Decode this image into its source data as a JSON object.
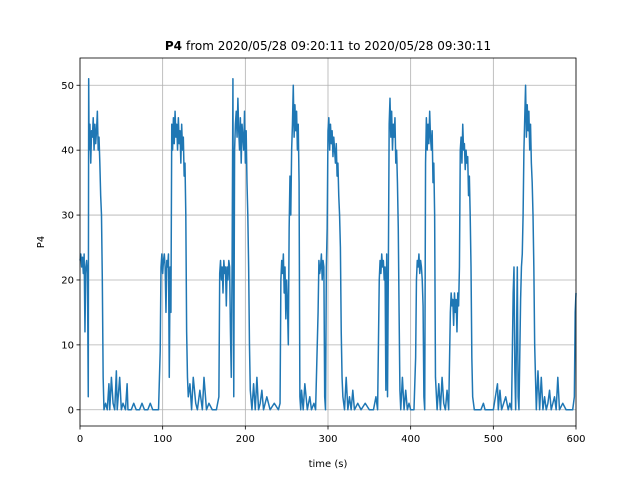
{
  "chart_data": {
    "type": "line",
    "title": [
      "P4",
      "from 2020/05/28 09:20:11 to 2020/05/28 09:30:11"
    ],
    "xlabel": "time (s)",
    "ylabel": "P4",
    "xlim": [
      0,
      600
    ],
    "ylim": [
      -2.5,
      54.2
    ],
    "xticks": [
      0,
      100,
      200,
      300,
      400,
      500,
      600
    ],
    "yticks": [
      0,
      10,
      20,
      30,
      40,
      50
    ],
    "grid": true,
    "x": [
      0,
      1,
      2,
      3,
      4,
      5,
      6,
      7,
      8,
      9,
      10,
      10.5,
      11,
      12,
      13,
      14,
      15,
      16,
      17,
      18,
      19,
      20,
      21,
      22,
      23,
      24,
      25,
      26,
      27,
      28,
      29,
      31,
      33,
      35,
      36,
      38,
      40,
      42,
      44,
      45,
      48,
      50,
      52,
      55,
      57,
      58,
      62,
      65,
      68,
      72,
      75,
      78,
      82,
      85,
      88,
      92,
      95,
      97,
      98,
      99,
      100,
      101,
      102,
      103,
      104,
      105,
      106,
      107,
      108,
      109,
      110,
      111,
      112,
      113,
      114,
      115,
      116,
      117,
      118,
      119,
      120,
      121,
      122,
      123,
      124,
      125,
      126,
      127,
      128,
      129,
      130,
      131,
      133,
      135,
      137,
      140,
      142,
      145,
      148,
      150,
      153,
      156,
      160,
      165,
      168,
      169,
      170,
      171,
      172,
      173,
      174,
      175,
      176,
      177,
      178,
      179,
      180,
      181,
      182,
      183,
      184,
      185,
      186,
      187,
      188,
      189,
      190,
      191,
      192,
      193,
      194,
      195,
      196,
      197,
      198,
      199,
      200,
      201,
      202,
      203,
      204,
      205,
      206,
      208,
      210,
      212,
      214,
      216,
      218,
      220,
      222,
      226,
      230,
      235,
      240,
      242,
      243,
      244,
      245,
      246,
      247,
      248,
      249,
      250,
      251,
      252,
      253,
      254,
      255,
      256,
      257,
      258,
      259,
      260,
      261,
      262,
      263,
      264,
      265,
      266,
      267,
      268,
      270,
      272,
      275,
      278,
      280,
      283,
      285,
      288,
      289,
      290,
      291,
      292,
      293,
      294,
      295,
      296,
      297,
      298,
      299,
      300,
      301,
      302,
      303,
      304,
      305,
      306,
      307,
      308,
      309,
      310,
      311,
      312,
      313,
      314,
      315,
      316,
      317,
      318,
      320,
      322,
      324,
      326,
      328,
      330,
      332,
      336,
      340,
      345,
      350,
      355,
      358,
      360,
      362,
      363,
      364,
      365,
      366,
      367,
      368,
      369,
      370,
      371,
      372,
      373,
      374,
      375,
      376,
      377,
      378,
      379,
      380,
      381,
      382,
      383,
      384,
      385,
      386,
      387,
      388,
      390,
      392,
      394,
      396,
      398,
      400,
      404,
      406,
      407,
      408,
      409,
      410,
      411,
      412,
      413,
      414,
      415,
      416,
      417,
      418,
      419,
      420,
      421,
      422,
      423,
      424,
      425,
      426,
      427,
      428,
      429,
      430,
      432,
      434,
      436,
      438,
      440,
      442,
      444,
      446,
      448,
      449,
      450,
      451,
      452,
      453,
      454,
      455,
      456,
      457,
      458,
      459,
      460,
      461,
      462,
      463,
      464,
      465,
      466,
      467,
      468,
      469,
      470,
      471,
      472,
      473,
      474,
      475,
      477,
      480,
      485,
      488,
      490,
      495,
      500,
      505,
      506,
      508,
      510,
      515,
      518,
      520,
      522,
      524,
      525,
      526,
      527,
      529,
      530,
      531,
      533,
      534,
      535,
      536,
      537,
      538,
      539,
      540,
      541,
      542,
      543,
      544,
      545,
      546,
      547,
      548,
      549,
      550,
      551,
      552,
      554,
      556,
      558,
      560,
      562,
      564,
      566,
      568,
      570,
      574,
      576,
      578,
      580,
      584,
      588,
      592,
      596,
      598,
      599,
      600
    ],
    "series": [
      {
        "color": "#1f77b4",
        "values": [
          23,
          24,
          22,
          23.5,
          21,
          24,
          12,
          22,
          23,
          21,
          2,
          51,
          40,
          44,
          38,
          43,
          42,
          45,
          40,
          44,
          41,
          43,
          46,
          40,
          42,
          38,
          33,
          30,
          20,
          5,
          0,
          1,
          0,
          4,
          0,
          5,
          1,
          0,
          6,
          0,
          5,
          0,
          1,
          0,
          4,
          0,
          0,
          1,
          0,
          0,
          1,
          0,
          0,
          1,
          0,
          0,
          0,
          9,
          22,
          24,
          21,
          23,
          24,
          22,
          15,
          23,
          22,
          24,
          5,
          22,
          15,
          44,
          40,
          45,
          41,
          46,
          42,
          44,
          40,
          45,
          41,
          43,
          38,
          44,
          40,
          42,
          36,
          38,
          30,
          12,
          5,
          2,
          4,
          0,
          5,
          1,
          0,
          3,
          0,
          5,
          0,
          1,
          0,
          0,
          2,
          21,
          23,
          20,
          22,
          18,
          23,
          21,
          22,
          16,
          22,
          20,
          23,
          22,
          12,
          5,
          23,
          51,
          2,
          40,
          44,
          46,
          42,
          48,
          43,
          40,
          45,
          38,
          44,
          42,
          40,
          46,
          38,
          43,
          35,
          30,
          22,
          10,
          3,
          0,
          4,
          0,
          5,
          0,
          1,
          3,
          0,
          2,
          0,
          1,
          0,
          1,
          20,
          23,
          21,
          24,
          18,
          22,
          14,
          20,
          16,
          10,
          28,
          36,
          30,
          40,
          44,
          50,
          42,
          47,
          43,
          46,
          40,
          44,
          35,
          2,
          0,
          3,
          0,
          4,
          0,
          2,
          0,
          1,
          0,
          15,
          23,
          21,
          22,
          24,
          20,
          23,
          22,
          2,
          0,
          22,
          28,
          43,
          45,
          40,
          44,
          41,
          43,
          39,
          42,
          40,
          38,
          41,
          36,
          38,
          33,
          30,
          25,
          12,
          5,
          2,
          0,
          5,
          0,
          2,
          0,
          3,
          0,
          1,
          0,
          1,
          0,
          0,
          2,
          0,
          20,
          23,
          21,
          24,
          22,
          23,
          20,
          22,
          3,
          24,
          2,
          22,
          44,
          48,
          42,
          46,
          40,
          44,
          42,
          45,
          38,
          40,
          35,
          28,
          15,
          3,
          0,
          5,
          0,
          3,
          0,
          1,
          0,
          0,
          8,
          20,
          23,
          22,
          24,
          21,
          23,
          22,
          20,
          16,
          2,
          0,
          38,
          45,
          40,
          44,
          41,
          46,
          42,
          40,
          43,
          35,
          38,
          30,
          5,
          0,
          4,
          0,
          5,
          1,
          0,
          3,
          0,
          15,
          18,
          16,
          17,
          13,
          18,
          15,
          17,
          12,
          18,
          16,
          22,
          40,
          42,
          38,
          44,
          40,
          41,
          37,
          40,
          38,
          39,
          33,
          36,
          30,
          22,
          8,
          2,
          0,
          0,
          0,
          1,
          0,
          0,
          0,
          4,
          0,
          3,
          0,
          2,
          0,
          1,
          0,
          18,
          22,
          6,
          0,
          22,
          2,
          0,
          17,
          22,
          24,
          30,
          40,
          45,
          50,
          42,
          47,
          43,
          46,
          40,
          44,
          38,
          35,
          30,
          22,
          10,
          5,
          0,
          6,
          0,
          5,
          0,
          2,
          0,
          1,
          3,
          0,
          2,
          0,
          5,
          0,
          1,
          0,
          0,
          0,
          2,
          15,
          18
        ]
      }
    ]
  }
}
